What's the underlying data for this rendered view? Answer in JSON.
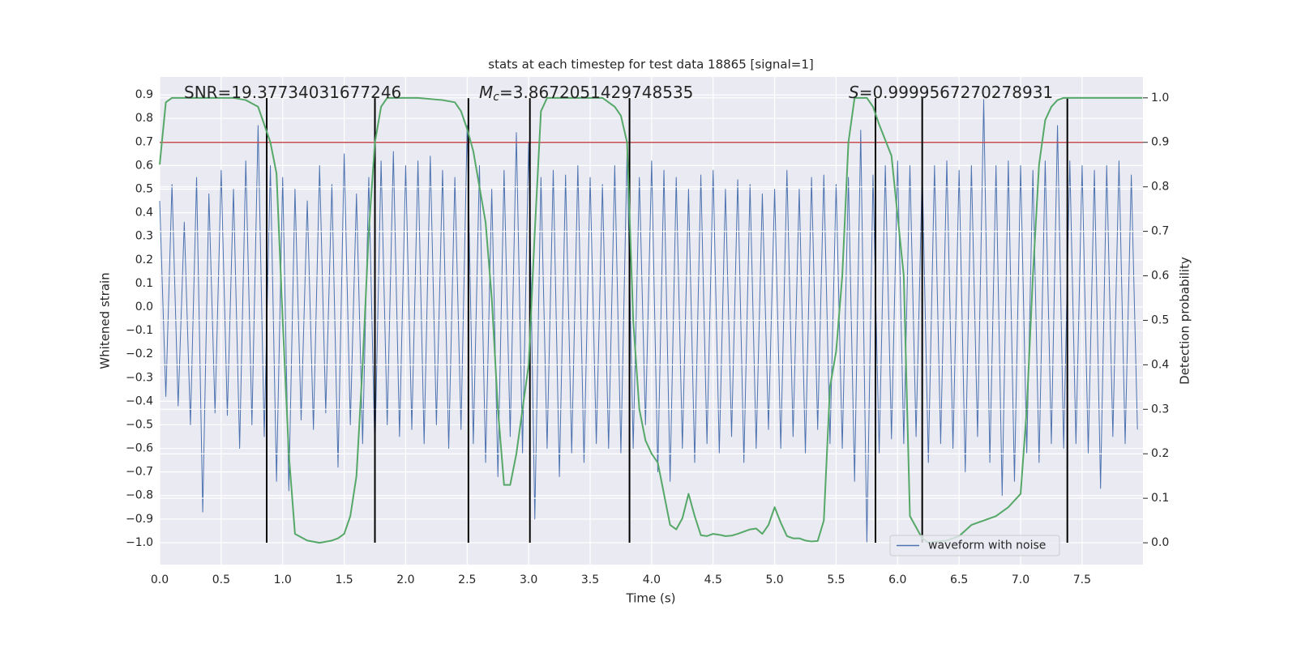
{
  "chart_data": {
    "type": "line",
    "title": "stats at each timestep for test data 18865 [signal=1]",
    "xlabel": "Time (s)",
    "ylabel": "Whitened strain",
    "y2label": "Detection probability",
    "xlim": [
      0,
      7.995
    ],
    "ylim": [
      -1.093,
      0.976
    ],
    "y2lim": [
      -0.049,
      1.047
    ],
    "xticks": [
      {
        "value": 0,
        "label": "0.0"
      },
      {
        "value": 0.5,
        "label": "0.5"
      },
      {
        "value": 1,
        "label": "1.0"
      },
      {
        "value": 1.5,
        "label": "1.5"
      },
      {
        "value": 2,
        "label": "2.0"
      },
      {
        "value": 2.5,
        "label": "2.5"
      },
      {
        "value": 3,
        "label": "3.0"
      },
      {
        "value": 3.5,
        "label": "3.5"
      },
      {
        "value": 4,
        "label": "4.0"
      },
      {
        "value": 4.5,
        "label": "4.5"
      },
      {
        "value": 5,
        "label": "5.0"
      },
      {
        "value": 5.5,
        "label": "5.5"
      },
      {
        "value": 6,
        "label": "6.0"
      },
      {
        "value": 6.5,
        "label": "6.5"
      },
      {
        "value": 7,
        "label": "7.0"
      },
      {
        "value": 7.5,
        "label": "7.5"
      }
    ],
    "yticks": [
      {
        "value": -1.0,
        "label": "−1.0"
      },
      {
        "value": -0.9,
        "label": "−0.9"
      },
      {
        "value": -0.8,
        "label": "−0.8"
      },
      {
        "value": -0.7,
        "label": "−0.7"
      },
      {
        "value": -0.6,
        "label": "−0.6"
      },
      {
        "value": -0.5,
        "label": "−0.5"
      },
      {
        "value": -0.4,
        "label": "−0.4"
      },
      {
        "value": -0.3,
        "label": "−0.3"
      },
      {
        "value": -0.2,
        "label": "−0.2"
      },
      {
        "value": -0.1,
        "label": "−0.1"
      },
      {
        "value": 0,
        "label": "0.0"
      },
      {
        "value": 0.1,
        "label": "0.1"
      },
      {
        "value": 0.2,
        "label": "0.2"
      },
      {
        "value": 0.3,
        "label": "0.3"
      },
      {
        "value": 0.4,
        "label": "0.4"
      },
      {
        "value": 0.5,
        "label": "0.5"
      },
      {
        "value": 0.6,
        "label": "0.6"
      },
      {
        "value": 0.7,
        "label": "0.7"
      },
      {
        "value": 0.8,
        "label": "0.8"
      },
      {
        "value": 0.9,
        "label": "0.9"
      }
    ],
    "y2ticks": [
      {
        "value": 0,
        "label": "0.0"
      },
      {
        "value": 0.1,
        "label": "0.1"
      },
      {
        "value": 0.2,
        "label": "0.2"
      },
      {
        "value": 0.3,
        "label": "0.3"
      },
      {
        "value": 0.4,
        "label": "0.4"
      },
      {
        "value": 0.5,
        "label": "0.5"
      },
      {
        "value": 0.6,
        "label": "0.6"
      },
      {
        "value": 0.7,
        "label": "0.7"
      },
      {
        "value": 0.8,
        "label": "0.8"
      },
      {
        "value": 0.9,
        "label": "0.9"
      },
      {
        "value": 1,
        "label": "1.0"
      }
    ],
    "grid": true,
    "legend": "lower right",
    "x": [
      0,
      0.05,
      0.1,
      0.15,
      0.2,
      0.25,
      0.3,
      0.35,
      0.4,
      0.45,
      0.5,
      0.55,
      0.6,
      0.65,
      0.7,
      0.75,
      0.8,
      0.85,
      0.9,
      0.95,
      1,
      1.05,
      1.1,
      1.15,
      1.2,
      1.25,
      1.3,
      1.35,
      1.4,
      1.45,
      1.5,
      1.55,
      1.6,
      1.65,
      1.7,
      1.75,
      1.8,
      1.85,
      1.9,
      1.95,
      2,
      2.05,
      2.1,
      2.15,
      2.2,
      2.25,
      2.3,
      2.35,
      2.4,
      2.45,
      2.5,
      2.55,
      2.6,
      2.65,
      2.7,
      2.75,
      2.8,
      2.85,
      2.9,
      2.95,
      3,
      3.05,
      3.1,
      3.15,
      3.2,
      3.25,
      3.3,
      3.35,
      3.4,
      3.45,
      3.5,
      3.55,
      3.6,
      3.65,
      3.7,
      3.75,
      3.8,
      3.85,
      3.9,
      3.95,
      4,
      4.05,
      4.1,
      4.15,
      4.2,
      4.25,
      4.3,
      4.35,
      4.4,
      4.45,
      4.5,
      4.55,
      4.6,
      4.65,
      4.7,
      4.75,
      4.8,
      4.85,
      4.9,
      4.95,
      5,
      5.05,
      5.1,
      5.15,
      5.2,
      5.25,
      5.3,
      5.35,
      5.4,
      5.45,
      5.5,
      5.55,
      5.6,
      5.65,
      5.7,
      5.75,
      5.8,
      5.85,
      5.9,
      5.95,
      6,
      6.05,
      6.1,
      6.15,
      6.2,
      6.25,
      6.3,
      6.35,
      6.4,
      6.45,
      6.5,
      6.55,
      6.6,
      6.65,
      6.7,
      6.75,
      6.8,
      6.85,
      6.9,
      6.95,
      7,
      7.05,
      7.1,
      7.15,
      7.2,
      7.25,
      7.3,
      7.35,
      7.4,
      7.45,
      7.5,
      7.55,
      7.6,
      7.65,
      7.7,
      7.75,
      7.8,
      7.85,
      7.9,
      7.95
    ],
    "series": [
      {
        "name": "waveform with noise",
        "color": "#4c72b0",
        "values": [
          0.45,
          -0.38,
          0.52,
          -0.42,
          0.36,
          -0.5,
          0.55,
          -0.87,
          0.48,
          -0.45,
          0.58,
          -0.46,
          0.5,
          -0.6,
          0.62,
          -0.5,
          0.77,
          -0.55,
          0.6,
          -0.74,
          0.55,
          -0.78,
          0.5,
          -0.48,
          0.45,
          -0.52,
          0.6,
          -0.45,
          0.52,
          -0.68,
          0.65,
          -0.5,
          0.48,
          -0.58,
          0.55,
          -0.62,
          0.62,
          -0.5,
          0.66,
          -0.55,
          0.6,
          -0.52,
          0.62,
          -0.58,
          0.64,
          -0.5,
          0.58,
          -0.6,
          0.55,
          -0.52,
          0.77,
          -0.58,
          0.6,
          -0.66,
          0.5,
          -0.72,
          0.58,
          -0.55,
          0.74,
          -0.62,
          0.7,
          -0.9,
          0.55,
          -0.6,
          0.58,
          -0.72,
          0.56,
          -0.62,
          0.6,
          -0.66,
          0.55,
          -0.58,
          0.52,
          -0.6,
          0.6,
          -0.62,
          0.66,
          -0.6,
          0.55,
          -0.5,
          0.62,
          -0.7,
          0.58,
          -0.74,
          0.55,
          -0.6,
          0.5,
          -0.66,
          0.56,
          -0.58,
          0.58,
          -0.62,
          0.5,
          -0.55,
          0.54,
          -0.66,
          0.52,
          -0.6,
          0.48,
          -0.52,
          0.5,
          -0.6,
          0.58,
          -0.55,
          0.5,
          -0.62,
          0.55,
          -0.52,
          0.56,
          -0.58,
          0.52,
          -0.6,
          0.55,
          -0.74,
          0.75,
          -1.0,
          0.56,
          -0.62,
          0.6,
          -0.56,
          0.62,
          -0.58,
          0.6,
          -0.55,
          0.58,
          -0.66,
          0.6,
          -0.58,
          0.62,
          -0.6,
          0.58,
          -0.7,
          0.6,
          -0.55,
          0.88,
          -0.66,
          0.6,
          -0.8,
          0.62,
          -0.74,
          0.6,
          -0.62,
          0.58,
          -0.66,
          0.62,
          -0.58,
          0.77,
          -0.6,
          0.62,
          -0.58,
          0.6,
          -0.62,
          0.58,
          -0.77,
          0.6,
          -0.55,
          0.62,
          -0.58,
          0.56,
          -0.52
        ]
      },
      {
        "color": "#55a868",
        "axis": "y2",
        "x": [
          0,
          0.05,
          0.1,
          0.2,
          0.4,
          0.6,
          0.7,
          0.8,
          0.9,
          0.95,
          1,
          1.05,
          1.1,
          1.2,
          1.3,
          1.4,
          1.45,
          1.5,
          1.55,
          1.6,
          1.65,
          1.7,
          1.75,
          1.8,
          1.85,
          1.9,
          2.1,
          2.3,
          2.4,
          2.45,
          2.5,
          2.55,
          2.6,
          2.65,
          2.7,
          2.75,
          2.8,
          2.85,
          2.9,
          2.95,
          3,
          3.05,
          3.1,
          3.15,
          3.4,
          3.6,
          3.7,
          3.75,
          3.8,
          3.85,
          3.9,
          3.95,
          4,
          4.05,
          4.1,
          4.15,
          4.2,
          4.25,
          4.3,
          4.35,
          4.4,
          4.45,
          4.5,
          4.55,
          4.6,
          4.65,
          4.7,
          4.8,
          4.85,
          4.9,
          4.95,
          5,
          5.05,
          5.1,
          5.15,
          5.2,
          5.25,
          5.3,
          5.35,
          5.4,
          5.45,
          5.5,
          5.55,
          5.6,
          5.65,
          5.75,
          5.8,
          5.85,
          5.95,
          6.05,
          6.1,
          6.2,
          6.25,
          6.3,
          6.4,
          6.5,
          6.6,
          6.8,
          6.9,
          7,
          7.05,
          7.1,
          7.15,
          7.2,
          7.25,
          7.3,
          7.35,
          7.4,
          7.45,
          7.5,
          7.6,
          7.99
        ],
        "values": [
          0.85,
          0.99,
          1.0,
          1.0,
          1.0,
          1.0,
          0.995,
          0.98,
          0.9,
          0.83,
          0.5,
          0.2,
          0.02,
          0.005,
          0.0,
          0.005,
          0.01,
          0.02,
          0.06,
          0.15,
          0.4,
          0.7,
          0.9,
          0.98,
          1.0,
          1.0,
          1.0,
          0.995,
          0.99,
          0.97,
          0.93,
          0.88,
          0.8,
          0.72,
          0.55,
          0.3,
          0.13,
          0.13,
          0.2,
          0.3,
          0.4,
          0.7,
          0.97,
          1.0,
          1.0,
          1.0,
          0.98,
          0.96,
          0.9,
          0.5,
          0.3,
          0.23,
          0.2,
          0.18,
          0.11,
          0.04,
          0.03,
          0.055,
          0.11,
          0.06,
          0.017,
          0.015,
          0.02,
          0.018,
          0.015,
          0.016,
          0.02,
          0.03,
          0.032,
          0.02,
          0.04,
          0.08,
          0.045,
          0.015,
          0.01,
          0.01,
          0.005,
          0.003,
          0.004,
          0.05,
          0.35,
          0.43,
          0.6,
          0.9,
          1.0,
          1.0,
          0.98,
          0.94,
          0.87,
          0.6,
          0.06,
          0.01,
          0.0,
          0.002,
          0.005,
          0.015,
          0.04,
          0.06,
          0.08,
          0.11,
          0.3,
          0.6,
          0.85,
          0.95,
          0.98,
          0.995,
          1.0,
          1.0,
          1.0,
          1.0,
          1.0,
          1.0
        ]
      }
    ],
    "hline": {
      "value": 0.9,
      "axis": "y2",
      "color": "#c44e52"
    },
    "vlines": {
      "x": [
        0.87,
        1.75,
        2.51,
        3.01,
        3.82,
        5.82,
        6.2,
        7.38
      ],
      "ymin": -1.0,
      "ymax": 0.886,
      "color": "#000000"
    },
    "annotations": [
      {
        "text": "SNR=19.37734031677246"
      },
      {
        "symbol": "M",
        "subscript": "c",
        "text": "=3.8672051429748535"
      },
      {
        "symbol": "S",
        "text": "=0.9999567270278931"
      }
    ]
  }
}
